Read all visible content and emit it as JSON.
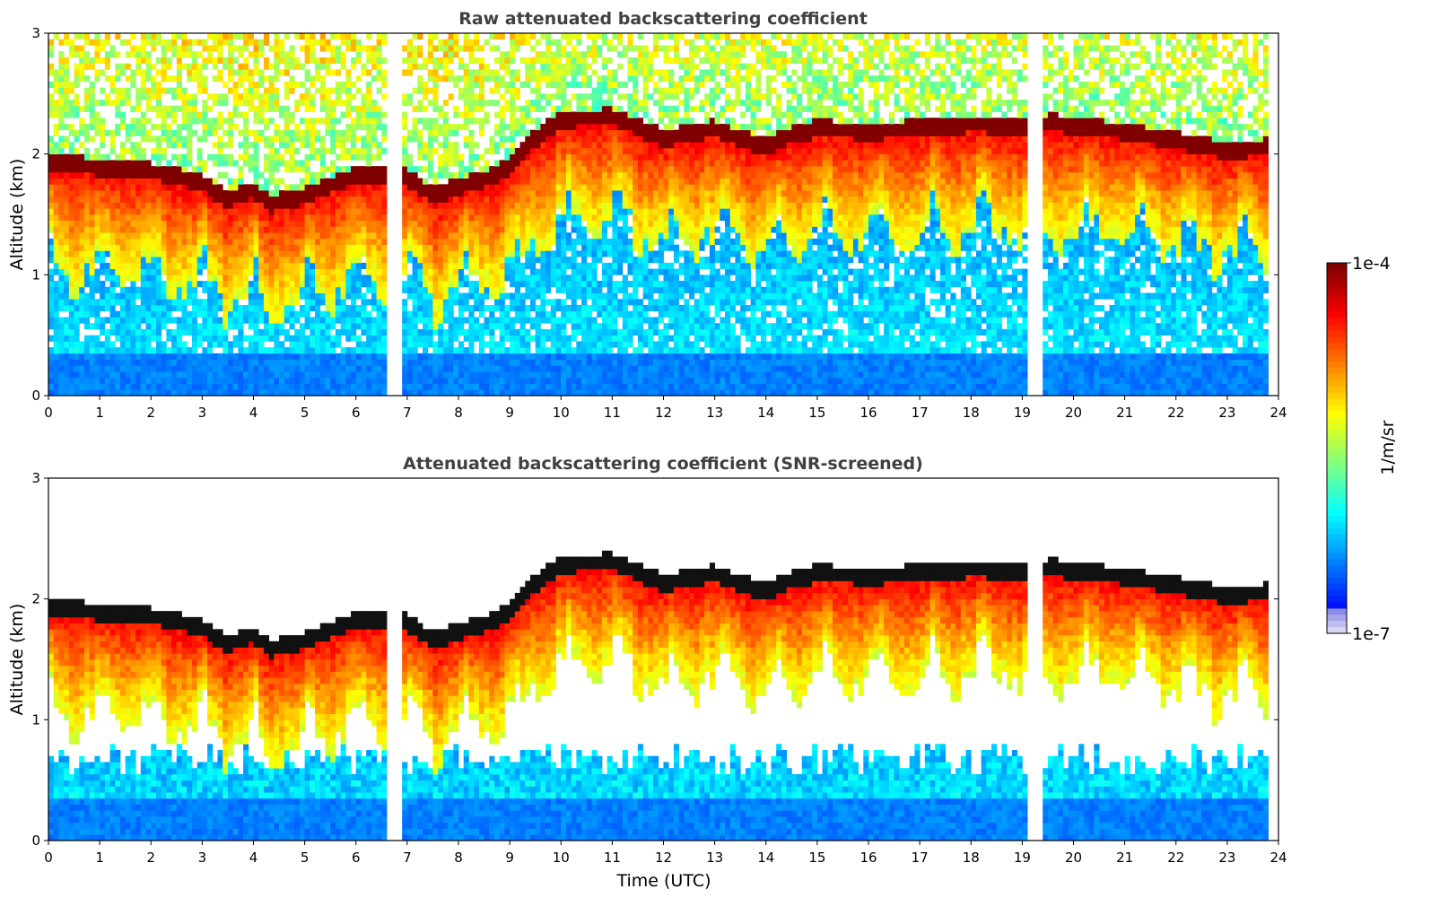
{
  "chart_data": [
    {
      "type": "heatmap",
      "title": "Raw attenuated backscattering coefficient",
      "xlabel": "",
      "ylabel": "Altitude (km)",
      "xlim": [
        0,
        24
      ],
      "ylim": [
        0,
        3
      ],
      "x_ticks": [
        0,
        1,
        2,
        3,
        4,
        5,
        6,
        7,
        8,
        9,
        10,
        11,
        12,
        13,
        14,
        15,
        16,
        17,
        18,
        19,
        20,
        21,
        22,
        23,
        24
      ],
      "y_ticks": [
        0,
        1,
        2,
        3
      ],
      "grid": false,
      "screened": false,
      "cloud_base_km": [
        [
          0.0,
          1.93
        ],
        [
          1.0,
          1.88
        ],
        [
          2.0,
          1.85
        ],
        [
          3.0,
          1.75
        ],
        [
          3.5,
          1.62
        ],
        [
          4.0,
          1.7
        ],
        [
          4.3,
          1.58
        ],
        [
          5.0,
          1.65
        ],
        [
          6.0,
          1.82
        ],
        [
          6.6,
          1.8
        ],
        [
          7.0,
          1.8
        ],
        [
          7.5,
          1.65
        ],
        [
          8.0,
          1.72
        ],
        [
          8.5,
          1.78
        ],
        [
          9.0,
          1.88
        ],
        [
          9.3,
          2.05
        ],
        [
          10.0,
          2.28
        ],
        [
          11.0,
          2.3
        ],
        [
          12.0,
          2.12
        ],
        [
          13.0,
          2.2
        ],
        [
          13.5,
          2.12
        ],
        [
          14.0,
          2.05
        ],
        [
          14.5,
          2.15
        ],
        [
          15.0,
          2.2
        ],
        [
          16.0,
          2.18
        ],
        [
          17.0,
          2.2
        ],
        [
          18.0,
          2.24
        ],
        [
          19.0,
          2.22
        ],
        [
          19.6,
          2.25
        ],
        [
          20.0,
          2.22
        ],
        [
          21.0,
          2.18
        ],
        [
          22.0,
          2.1
        ],
        [
          23.0,
          2.02
        ],
        [
          23.8,
          2.05
        ]
      ]
    },
    {
      "type": "heatmap",
      "title": "Attenuated backscattering coefficient (SNR-screened)",
      "xlabel": "Time (UTC)",
      "ylabel": "Altitude (km)",
      "xlim": [
        0,
        24
      ],
      "ylim": [
        0,
        3
      ],
      "x_ticks": [
        0,
        1,
        2,
        3,
        4,
        5,
        6,
        7,
        8,
        9,
        10,
        11,
        12,
        13,
        14,
        15,
        16,
        17,
        18,
        19,
        20,
        21,
        22,
        23,
        24
      ],
      "y_ticks": [
        0,
        1,
        2,
        3
      ],
      "grid": false,
      "screened": true,
      "cloud_base_km": [
        [
          0.0,
          1.93
        ],
        [
          1.0,
          1.88
        ],
        [
          2.0,
          1.85
        ],
        [
          3.0,
          1.75
        ],
        [
          3.5,
          1.62
        ],
        [
          4.0,
          1.7
        ],
        [
          4.3,
          1.58
        ],
        [
          5.0,
          1.65
        ],
        [
          6.0,
          1.82
        ],
        [
          6.6,
          1.8
        ],
        [
          7.0,
          1.8
        ],
        [
          7.5,
          1.65
        ],
        [
          8.0,
          1.72
        ],
        [
          8.5,
          1.78
        ],
        [
          9.0,
          1.88
        ],
        [
          9.3,
          2.05
        ],
        [
          10.0,
          2.28
        ],
        [
          11.0,
          2.3
        ],
        [
          12.0,
          2.12
        ],
        [
          13.0,
          2.2
        ],
        [
          13.5,
          2.12
        ],
        [
          14.0,
          2.05
        ],
        [
          14.5,
          2.15
        ],
        [
          15.0,
          2.2
        ],
        [
          16.0,
          2.18
        ],
        [
          17.0,
          2.2
        ],
        [
          18.0,
          2.24
        ],
        [
          19.0,
          2.22
        ],
        [
          19.6,
          2.25
        ],
        [
          20.0,
          2.22
        ],
        [
          21.0,
          2.18
        ],
        [
          22.0,
          2.1
        ],
        [
          23.0,
          2.02
        ],
        [
          23.8,
          2.05
        ]
      ]
    }
  ],
  "colorbar": {
    "label": "1/m/sr",
    "max_label": "1e-4",
    "min_label": "1e-7",
    "scale": "log",
    "colormap": "jet"
  }
}
